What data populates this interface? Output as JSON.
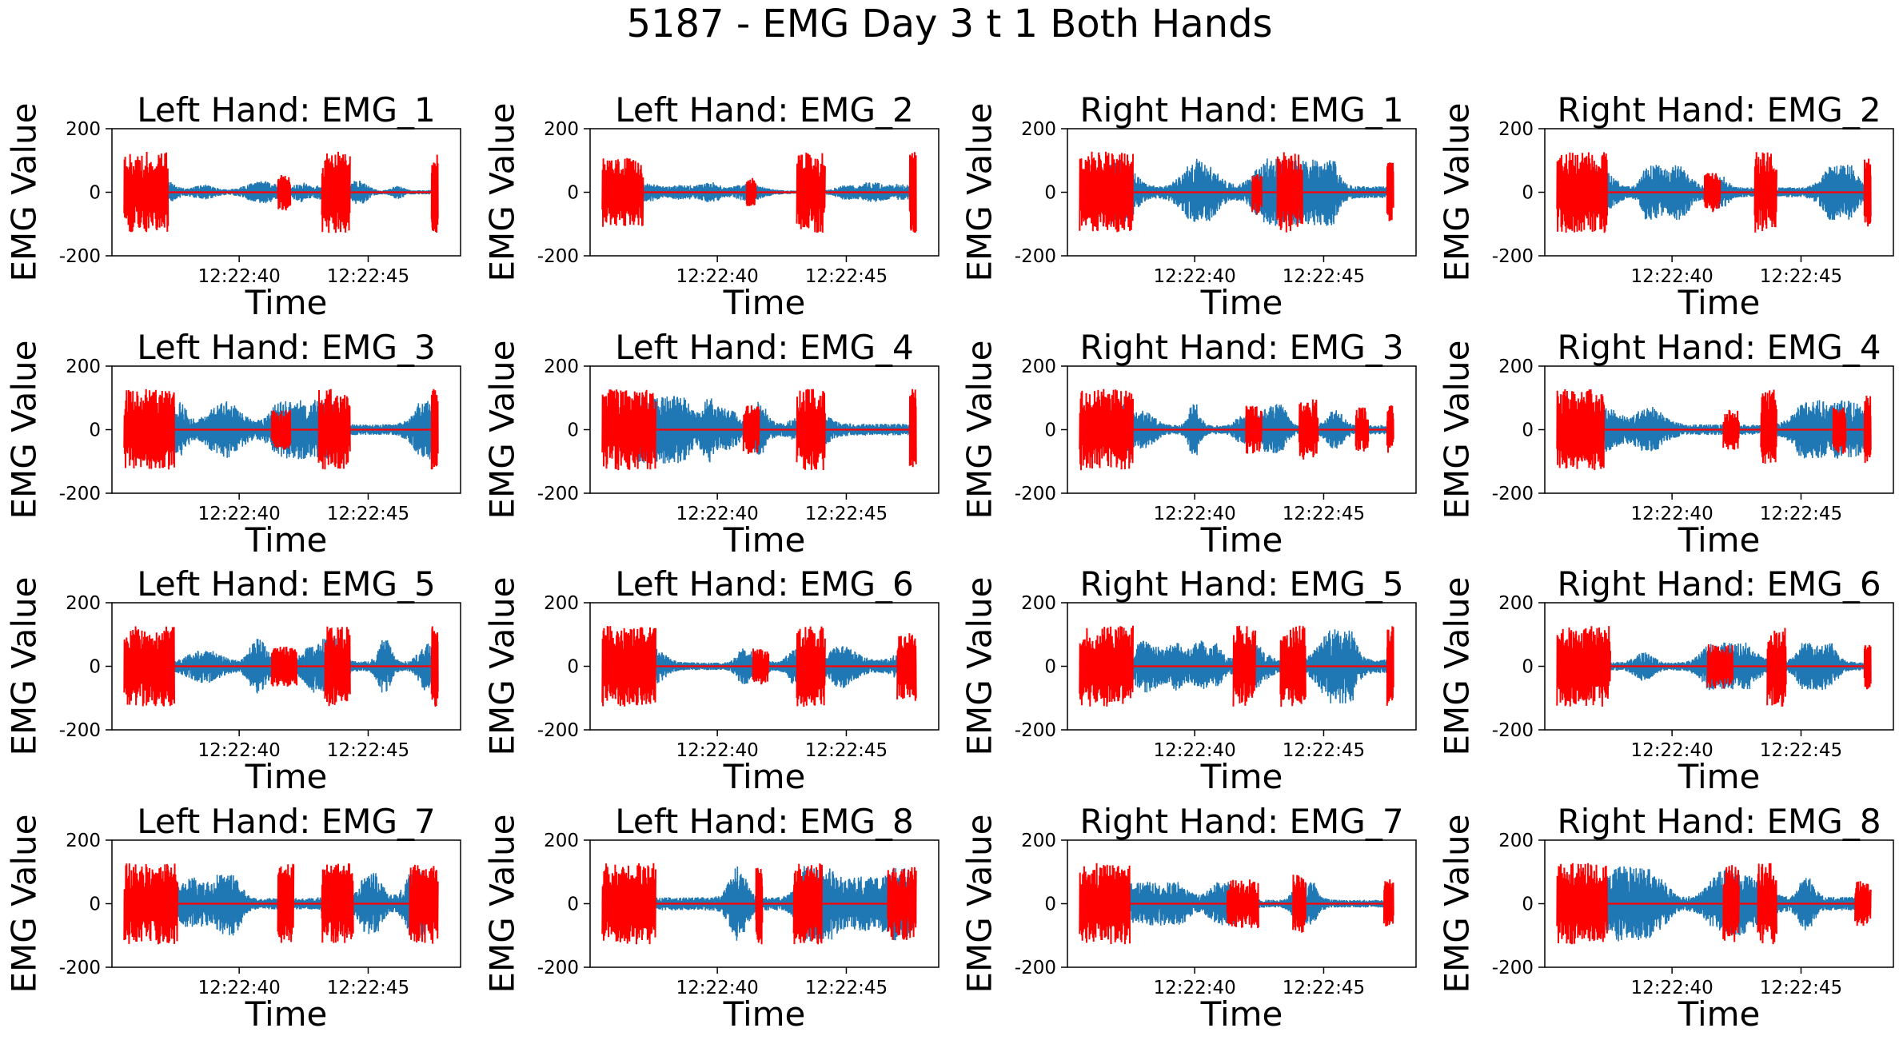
{
  "title": "5187 - EMG Day 3 t 1 Both Hands",
  "colors": {
    "signal": "#1f77b4",
    "highlight": "#ff0000",
    "zero_line": "#ff0000"
  },
  "chart_data": {
    "type": "line",
    "layout": "4x4 grid of subplots",
    "shared": {
      "xlabel": "Time",
      "ylabel": "EMG Value",
      "ylim": [
        -200,
        200
      ],
      "yticks": [
        200,
        0,
        -200
      ],
      "xticks": [
        "12:22:40",
        "12:22:45"
      ],
      "time_range": [
        "12:22:36.3",
        "12:22:49.6"
      ],
      "grid": false,
      "legend": "none"
    },
    "subplots": [
      {
        "title": "Left Hand:  EMG_1",
        "amp": 0.3,
        "red": [
          [
            0.0,
            0.14,
            1.0
          ],
          [
            0.49,
            0.53,
            0.45
          ],
          [
            0.63,
            0.72,
            1.0
          ],
          [
            0.98,
            1.0,
            1.0
          ]
        ],
        "tilt": 0
      },
      {
        "title": "Left Hand:  EMG_2",
        "amp": 0.25,
        "red": [
          [
            0.0,
            0.13,
            0.85
          ],
          [
            0.46,
            0.49,
            0.35
          ],
          [
            0.62,
            0.71,
            1.0
          ],
          [
            0.98,
            1.0,
            1.0
          ]
        ],
        "tilt": 0
      },
      {
        "title": "Right Hand:  EMG_1",
        "amp": 0.85,
        "red": [
          [
            0.0,
            0.17,
            1.0
          ],
          [
            0.55,
            0.58,
            0.55
          ],
          [
            0.63,
            0.71,
            1.0
          ],
          [
            0.98,
            1.0,
            0.75
          ]
        ],
        "tilt": 0
      },
      {
        "title": "Right Hand:  EMG_2",
        "amp": 0.7,
        "red": [
          [
            0.0,
            0.16,
            1.0
          ],
          [
            0.47,
            0.52,
            0.5
          ],
          [
            0.63,
            0.7,
            1.0
          ],
          [
            0.98,
            1.0,
            0.85
          ]
        ],
        "tilt": 0
      },
      {
        "title": "Left Hand:  EMG_3",
        "amp": 0.75,
        "red": [
          [
            0.0,
            0.16,
            1.0
          ],
          [
            0.47,
            0.53,
            0.5
          ],
          [
            0.62,
            0.72,
            1.0
          ],
          [
            0.98,
            1.0,
            1.0
          ]
        ],
        "tilt": 0
      },
      {
        "title": "Left Hand:  EMG_4",
        "amp": 0.85,
        "red": [
          [
            0.0,
            0.17,
            1.0
          ],
          [
            0.45,
            0.5,
            0.6
          ],
          [
            0.62,
            0.71,
            1.0
          ],
          [
            0.98,
            1.0,
            1.0
          ]
        ],
        "tilt": 0
      },
      {
        "title": "Right Hand:  EMG_3",
        "amp": 0.65,
        "red": [
          [
            0.0,
            0.17,
            1.0
          ],
          [
            0.53,
            0.58,
            0.6
          ],
          [
            0.7,
            0.76,
            0.75
          ],
          [
            0.88,
            0.92,
            0.55
          ],
          [
            0.98,
            1.0,
            0.6
          ]
        ],
        "tilt": 0
      },
      {
        "title": "Right Hand:  EMG_4",
        "amp": 0.75,
        "red": [
          [
            0.0,
            0.15,
            1.0
          ],
          [
            0.53,
            0.58,
            0.5
          ],
          [
            0.65,
            0.7,
            1.0
          ],
          [
            0.88,
            0.92,
            0.6
          ],
          [
            0.98,
            1.0,
            0.85
          ]
        ],
        "tilt": 0
      },
      {
        "title": "Left Hand:  EMG_5",
        "amp": 0.7,
        "red": [
          [
            0.0,
            0.16,
            1.0
          ],
          [
            0.47,
            0.55,
            0.5
          ],
          [
            0.64,
            0.72,
            1.0
          ],
          [
            0.98,
            1.0,
            1.0
          ]
        ],
        "tilt": 0
      },
      {
        "title": "Left Hand:  EMG_6",
        "amp": 0.55,
        "red": [
          [
            0.0,
            0.17,
            1.0
          ],
          [
            0.48,
            0.53,
            0.45
          ],
          [
            0.62,
            0.71,
            1.0
          ],
          [
            0.94,
            1.0,
            0.85
          ]
        ],
        "tilt": 0
      },
      {
        "title": "Right Hand:  EMG_5",
        "amp": 0.95,
        "red": [
          [
            0.0,
            0.17,
            1.0
          ],
          [
            0.49,
            0.56,
            1.0
          ],
          [
            0.64,
            0.72,
            1.0
          ],
          [
            0.98,
            1.0,
            1.0
          ]
        ],
        "tilt": 0
      },
      {
        "title": "Right Hand:  EMG_6",
        "amp": 0.6,
        "red": [
          [
            0.0,
            0.17,
            1.0
          ],
          [
            0.48,
            0.56,
            0.55
          ],
          [
            0.67,
            0.73,
            1.0
          ],
          [
            0.98,
            1.0,
            0.6
          ]
        ],
        "tilt": 0
      },
      {
        "title": "Left Hand:  EMG_7",
        "amp": 0.8,
        "red": [
          [
            0.0,
            0.17,
            1.0
          ],
          [
            0.49,
            0.54,
            1.0
          ],
          [
            0.63,
            0.73,
            1.0
          ],
          [
            0.91,
            1.0,
            1.0
          ]
        ],
        "tilt": 0
      },
      {
        "title": "Left Hand:  EMG_8",
        "amp": 0.95,
        "red": [
          [
            0.0,
            0.17,
            1.0
          ],
          [
            0.49,
            0.51,
            1.0
          ],
          [
            0.61,
            0.7,
            1.0
          ],
          [
            0.91,
            1.0,
            0.9
          ]
        ],
        "tilt": 0
      },
      {
        "title": "Right Hand:  EMG_7",
        "amp": 0.55,
        "red": [
          [
            0.0,
            0.16,
            1.0
          ],
          [
            0.47,
            0.57,
            0.6
          ],
          [
            0.68,
            0.72,
            0.75
          ],
          [
            0.97,
            1.0,
            0.6
          ]
        ],
        "tilt": 0
      },
      {
        "title": "Right Hand:  EMG_8",
        "amp": 0.95,
        "red": [
          [
            0.0,
            0.16,
            1.0
          ],
          [
            0.53,
            0.58,
            1.0
          ],
          [
            0.64,
            0.7,
            1.0
          ],
          [
            0.95,
            1.0,
            0.6
          ]
        ],
        "tilt": 0
      }
    ]
  }
}
